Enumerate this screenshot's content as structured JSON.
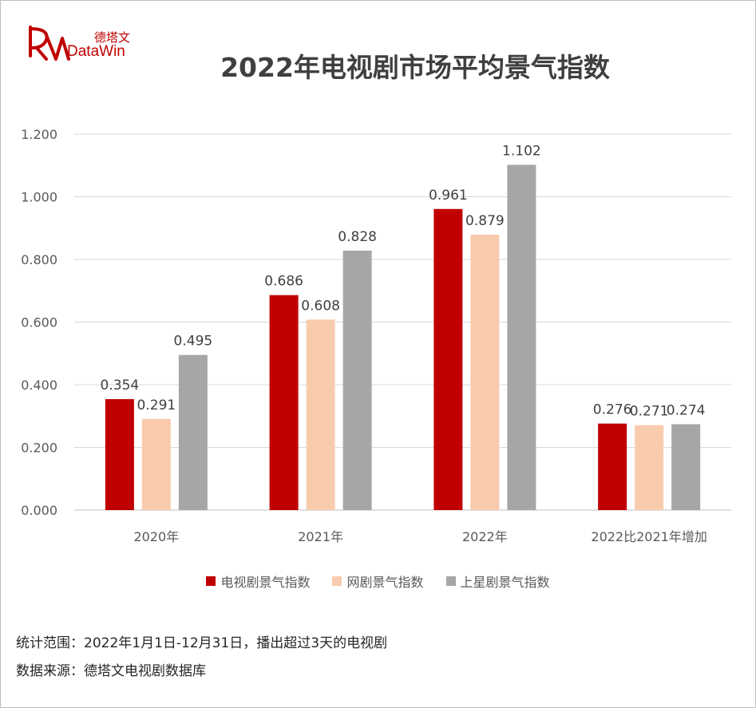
{
  "logo": {
    "cn": "德塔文",
    "en": "DataWin"
  },
  "chart_data": {
    "type": "bar",
    "title": "2022年电视剧市场平均景气指数",
    "categories": [
      "2020年",
      "2021年",
      "2022年",
      "2022比2021年增加"
    ],
    "series": [
      {
        "name": "电视剧景气指数",
        "color": "#c00000",
        "values": [
          0.354,
          0.686,
          0.961,
          0.276
        ]
      },
      {
        "name": "网剧景气指数",
        "color": "#f8cbad",
        "values": [
          0.291,
          0.608,
          0.879,
          0.271
        ]
      },
      {
        "name": "上星剧景气指数",
        "color": "#a6a6a6",
        "values": [
          0.495,
          0.828,
          1.102,
          0.274
        ]
      }
    ],
    "ylim": [
      0,
      1.2
    ],
    "yticks": [
      "0.000",
      "0.200",
      "0.400",
      "0.600",
      "0.800",
      "1.000",
      "1.200"
    ],
    "grid": true,
    "legend": "bottom"
  },
  "notes": {
    "scope": "统计范围：2022年1月1日-12月31日，播出超过3天的电视剧",
    "source": "数据来源：德塔文电视剧数据库"
  }
}
